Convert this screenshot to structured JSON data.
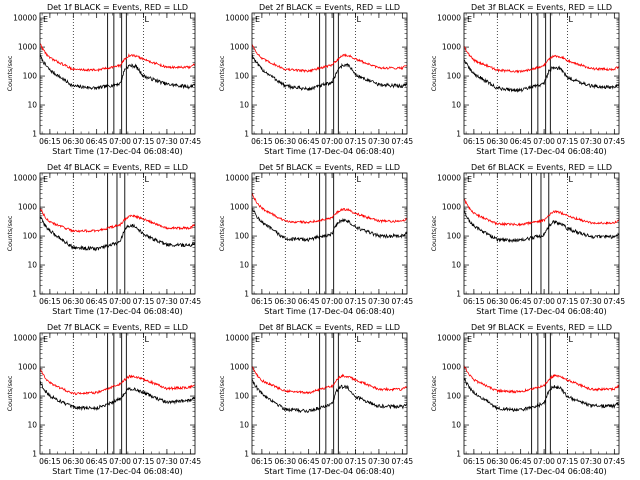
{
  "colors": {
    "events": "#000000",
    "lld": "#ff0000",
    "axis": "#000000",
    "background": "#ffffff"
  },
  "shared": {
    "ylabel": "Counts/sec",
    "xlabel": "Start Time (17-Dec-04 06:08:40)",
    "xticks": [
      "06:15",
      "06:30",
      "06:45",
      "07:00",
      "07:15",
      "07:30",
      "07:45"
    ],
    "yticks": [
      "1",
      "10",
      "100",
      "1000",
      "10000"
    ],
    "flag_labels": {
      "start": "E",
      "marker": "L"
    }
  },
  "chart_data": [
    {
      "type": "line",
      "title": "Det 1f BLACK = Events, RED = LLD",
      "xlabel": "Start Time (17-Dec-04 06:08:40)",
      "ylabel": "Counts/sec",
      "xlim": [
        "06:08:40",
        "07:48:00"
      ],
      "ylim": [
        1,
        15000
      ],
      "y_scale": "log",
      "dotted_verticals": [
        "06:30",
        "07:15"
      ],
      "solid_verticals": [
        "06:52",
        "06:56",
        "07:01",
        "07:04"
      ],
      "series": [
        {
          "name": "BLACK = Events",
          "values_at_ticks": [
            160,
            45,
            38,
            55,
            100,
            52,
            42
          ],
          "peak": {
            "time": "07:06",
            "value": 230
          }
        },
        {
          "name": "RED = LLD",
          "values_at_ticks": [
            420,
            170,
            160,
            230,
            380,
            200,
            200
          ],
          "peak": {
            "time": "07:06",
            "value": 520
          }
        }
      ]
    },
    {
      "type": "line",
      "title": "Det 2f BLACK = Events, RED = LLD",
      "xlabel": "Start Time (17-Dec-04 06:08:40)",
      "ylabel": "Counts/sec",
      "xlim": [
        "06:08:40",
        "07:48:00"
      ],
      "ylim": [
        1,
        15000
      ],
      "y_scale": "log",
      "dotted_verticals": [
        "06:30",
        "07:15"
      ],
      "solid_verticals": [
        "06:52",
        "06:56",
        "07:01",
        "07:04"
      ],
      "series": [
        {
          "name": "BLACK = Events",
          "values_at_ticks": [
            170,
            45,
            35,
            60,
            110,
            50,
            45
          ],
          "peak": {
            "time": "07:07",
            "value": 240
          }
        },
        {
          "name": "RED = LLD",
          "values_at_ticks": [
            400,
            170,
            150,
            240,
            380,
            190,
            190
          ],
          "peak": {
            "time": "07:07",
            "value": 530
          }
        }
      ]
    },
    {
      "type": "line",
      "title": "Det 3f BLACK = Events, RED = LLD",
      "xlabel": "Start Time (17-Dec-04 06:08:40)",
      "ylabel": "Counts/sec",
      "xlim": [
        "06:08:40",
        "07:48:00"
      ],
      "ylim": [
        1,
        15000
      ],
      "y_scale": "log",
      "dotted_verticals": [
        "06:30",
        "07:15"
      ],
      "solid_verticals": [
        "06:52",
        "06:56",
        "07:01",
        "07:04"
      ],
      "series": [
        {
          "name": "BLACK = Events",
          "values_at_ticks": [
            120,
            38,
            32,
            55,
            90,
            45,
            40
          ],
          "peak": {
            "time": "07:06",
            "value": 200
          }
        },
        {
          "name": "RED = LLD",
          "values_at_ticks": [
            350,
            160,
            140,
            230,
            350,
            180,
            170
          ],
          "peak": {
            "time": "07:06",
            "value": 500
          }
        }
      ]
    },
    {
      "type": "line",
      "title": "Det 4f BLACK = Events, RED = LLD",
      "xlabel": "Start Time (17-Dec-04 06:08:40)",
      "ylabel": "Counts/sec",
      "xlim": [
        "06:08:40",
        "07:48:00"
      ],
      "ylim": [
        1,
        15000
      ],
      "y_scale": "log",
      "dotted_verticals": [
        "06:30",
        "07:15"
      ],
      "solid_verticals": [
        "06:52",
        "06:58",
        "07:03"
      ],
      "series": [
        {
          "name": "BLACK = Events",
          "values_at_ticks": [
            150,
            40,
            36,
            60,
            110,
            50,
            48
          ],
          "peak": {
            "time": "07:06",
            "value": 230
          }
        },
        {
          "name": "RED = LLD",
          "values_at_ticks": [
            300,
            150,
            150,
            240,
            380,
            190,
            190
          ],
          "peak": {
            "time": "07:06",
            "value": 500
          }
        }
      ]
    },
    {
      "type": "line",
      "title": "Det 5f BLACK = Events, RED = LLD",
      "xlabel": "Start Time (17-Dec-04 06:08:40)",
      "ylabel": "Counts/sec",
      "xlim": [
        "06:08:40",
        "07:48:00"
      ],
      "ylim": [
        1,
        15000
      ],
      "y_scale": "log",
      "dotted_verticals": [
        "06:30",
        "07:15"
      ],
      "solid_verticals": [
        "06:52",
        "06:56",
        "07:01"
      ],
      "series": [
        {
          "name": "BLACK = Events",
          "values_at_ticks": [
            300,
            80,
            75,
            120,
            200,
            100,
            100
          ],
          "peak": {
            "time": "07:06",
            "value": 350
          }
        },
        {
          "name": "RED = LLD",
          "values_at_ticks": [
            900,
            320,
            300,
            420,
            600,
            330,
            320
          ],
          "peak": {
            "time": "07:06",
            "value": 850
          }
        }
      ]
    },
    {
      "type": "line",
      "title": "Det 6f BLACK = Events, RED = LLD",
      "xlabel": "Start Time (17-Dec-04 06:08:40)",
      "ylabel": "Counts/sec",
      "xlim": [
        "06:08:40",
        "07:48:00"
      ],
      "ylim": [
        1,
        15000
      ],
      "y_scale": "log",
      "dotted_verticals": [
        "06:30",
        "07:15"
      ],
      "solid_verticals": [
        "06:52",
        "06:58",
        "07:03"
      ],
      "series": [
        {
          "name": "BLACK = Events",
          "values_at_ticks": [
            220,
            75,
            70,
            110,
            180,
            95,
            95
          ],
          "peak": {
            "time": "07:06",
            "value": 300
          }
        },
        {
          "name": "RED = LLD",
          "values_at_ticks": [
            600,
            260,
            250,
            350,
            500,
            280,
            280
          ],
          "peak": {
            "time": "07:06",
            "value": 700
          }
        }
      ]
    },
    {
      "type": "line",
      "title": "Det 7f BLACK = Events, RED = LLD",
      "xlabel": "Start Time (17-Dec-04 06:08:40)",
      "ylabel": "Counts/sec",
      "xlim": [
        "06:08:40",
        "07:48:00"
      ],
      "ylim": [
        1,
        15000
      ],
      "y_scale": "log",
      "dotted_verticals": [
        "06:30",
        "07:15"
      ],
      "solid_verticals": [
        "06:52",
        "06:56",
        "07:01",
        "07:04"
      ],
      "series": [
        {
          "name": "BLACK = Events",
          "values_at_ticks": [
            100,
            40,
            38,
            80,
            130,
            60,
            70
          ],
          "peak": {
            "time": "07:06",
            "value": 180
          }
        },
        {
          "name": "RED = LLD",
          "values_at_ticks": [
            280,
            120,
            130,
            260,
            380,
            180,
            200
          ],
          "peak": {
            "time": "07:06",
            "value": 480
          }
        }
      ]
    },
    {
      "type": "line",
      "title": "Det 8f BLACK = Events, RED = LLD",
      "xlabel": "Start Time (17-Dec-04 06:08:40)",
      "ylabel": "Counts/sec",
      "xlim": [
        "06:08:40",
        "07:48:00"
      ],
      "ylim": [
        1,
        15000
      ],
      "y_scale": "log",
      "dotted_verticals": [
        "06:30",
        "07:15"
      ],
      "solid_verticals": [
        "06:52",
        "06:56",
        "07:01",
        "07:04"
      ],
      "series": [
        {
          "name": "BLACK = Events",
          "values_at_ticks": [
            120,
            35,
            30,
            55,
            95,
            45,
            42
          ],
          "peak": {
            "time": "07:06",
            "value": 210
          }
        },
        {
          "name": "RED = LLD",
          "values_at_ticks": [
            340,
            150,
            130,
            220,
            360,
            170,
            170
          ],
          "peak": {
            "time": "07:06",
            "value": 500
          }
        }
      ]
    },
    {
      "type": "line",
      "title": "Det 9f BLACK = Events, RED = LLD",
      "xlabel": "Start Time (17-Dec-04 06:08:40)",
      "ylabel": "Counts/sec",
      "xlim": [
        "06:08:40",
        "07:48:00"
      ],
      "ylim": [
        1,
        15000
      ],
      "y_scale": "log",
      "dotted_verticals": [
        "06:30",
        "07:15"
      ],
      "solid_verticals": [
        "06:52",
        "06:56",
        "07:01",
        "07:04"
      ],
      "series": [
        {
          "name": "BLACK = Events",
          "values_at_ticks": [
            130,
            38,
            32,
            55,
            95,
            45,
            45
          ],
          "peak": {
            "time": "07:06",
            "value": 210
          }
        },
        {
          "name": "RED = LLD",
          "values_at_ticks": [
            360,
            150,
            140,
            230,
            360,
            170,
            175
          ],
          "peak": {
            "time": "07:06",
            "value": 500
          }
        }
      ]
    }
  ]
}
